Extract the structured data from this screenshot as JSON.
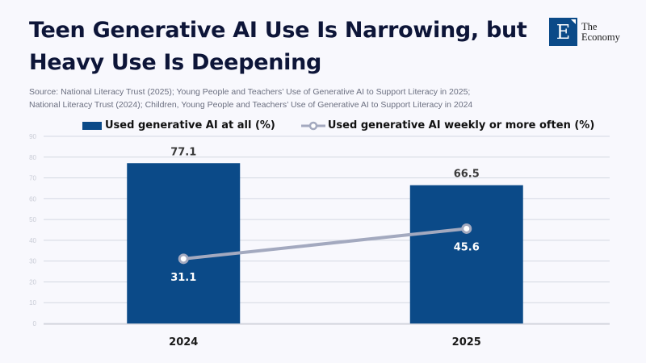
{
  "header": {
    "title": "Teen Generative AI Use Is Narrowing, but Heavy Use Is Deepening",
    "source_line1": "Source: National Literacy Trust (2025); Young People and Teachers’ Use of Generative AI to Support Literacy in 2025;",
    "source_line2": "National Literacy Trust (2024); Children, Young People and Teachers’ Use of Generative AI to Support Literacy in 2024"
  },
  "logo": {
    "letter": "E",
    "line1": "The",
    "line2": "Economy"
  },
  "colors": {
    "bar": "#0b4a88",
    "line": "#a3a9bf",
    "grid": "#d3d8e2",
    "tick": "#c9ccd6"
  },
  "chart_data": {
    "type": "bar",
    "title": "Teen Generative AI Use Is Narrowing, but Heavy Use Is Deepening",
    "xlabel": "",
    "ylabel": "",
    "categories": [
      "2024",
      "2025"
    ],
    "ylim": [
      0,
      90
    ],
    "yticks": [
      0,
      10,
      20,
      30,
      40,
      50,
      60,
      70,
      80,
      90
    ],
    "grid": true,
    "legend_position": "top-left",
    "series": [
      {
        "name": "Used generative AI at all (%)",
        "type": "bar",
        "values": [
          77.1,
          66.5
        ],
        "labels": [
          "77.1",
          "66.5"
        ]
      },
      {
        "name": "Used generative AI weekly or more often (%)",
        "type": "line",
        "values": [
          31.1,
          45.6
        ],
        "labels": [
          "31.1",
          "45.6"
        ]
      }
    ]
  }
}
